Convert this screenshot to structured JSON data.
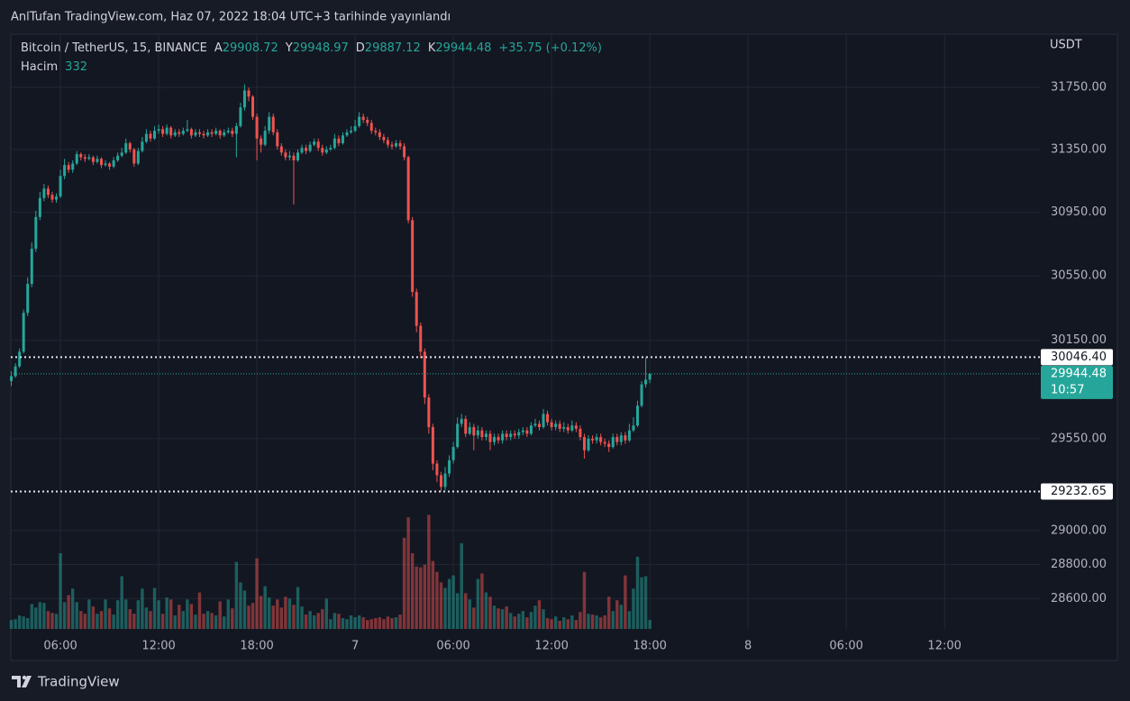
{
  "header": {
    "title": "AnlTufan TradingView.com, Haz 07, 2022 18:04 UTC+3 tarihinde yayınlandı"
  },
  "chart_data": {
    "type": "candlestick",
    "symbol": "Bitcoin / TetherUS, 15, BINANCE",
    "legend": [
      {
        "label": "A",
        "value": "29908.72"
      },
      {
        "label": "Y",
        "value": "29948.97"
      },
      {
        "label": "D",
        "value": "29887.12"
      },
      {
        "label": "K",
        "value": "29944.48"
      }
    ],
    "change": "+35.75 (+0.12%)",
    "volume_label": "Hacim",
    "volume_value": "332",
    "currency": "USDT",
    "x": [
      3,
      3.25,
      3.5,
      3.75,
      4,
      4.25,
      4.5,
      4.75,
      5,
      5.25,
      5.5,
      5.75,
      6,
      6.25,
      6.5,
      6.75,
      7,
      7.25,
      7.5,
      7.75,
      8,
      8.25,
      8.5,
      8.75,
      9,
      9.25,
      9.5,
      9.75,
      10,
      10.25,
      10.5,
      10.75,
      11,
      11.25,
      11.5,
      11.75,
      12,
      12.25,
      12.5,
      12.75,
      13,
      13.25,
      13.5,
      13.75,
      14,
      14.25,
      14.5,
      14.75,
      15,
      15.25,
      15.5,
      15.75,
      16,
      16.25,
      16.5,
      16.75,
      17,
      17.25,
      17.5,
      17.75,
      18,
      18.25,
      18.5,
      18.75,
      19,
      19.25,
      19.5,
      19.75,
      20,
      20.25,
      20.5,
      20.75,
      21,
      21.25,
      21.5,
      21.75,
      22,
      22.25,
      22.5,
      22.75,
      23,
      23.25,
      23.5,
      23.75,
      24,
      24.25,
      24.5,
      24.75,
      25,
      25.25,
      25.5,
      25.75,
      26,
      26.25,
      26.5,
      26.75,
      27,
      27.25,
      27.5,
      27.75,
      28,
      28.25,
      28.5,
      28.75,
      29,
      29.25,
      29.5,
      29.75,
      30,
      30.25,
      30.5,
      30.75,
      31,
      31.25,
      31.5,
      31.75,
      32,
      32.25,
      32.5,
      32.75,
      33,
      33.25,
      33.5,
      33.75,
      34,
      34.25,
      34.5,
      34.75,
      35,
      35.25,
      35.5,
      35.75,
      36,
      36.25,
      36.5,
      36.75,
      37,
      37.25,
      37.5,
      37.75,
      38,
      38.25,
      38.5,
      38.75,
      39,
      39.25,
      39.5,
      39.75,
      40,
      40.25,
      40.5,
      40.75,
      41,
      41.25,
      41.5,
      41.75,
      42
    ],
    "open": [
      29900,
      29930,
      29990,
      30080,
      30320,
      30500,
      30720,
      30920,
      31040,
      31100,
      31060,
      31030,
      31050,
      31180,
      31250,
      31220,
      31260,
      31320,
      31300,
      31290,
      31300,
      31270,
      31290,
      31250,
      31260,
      31240,
      31280,
      31310,
      31330,
      31390,
      31350,
      31260,
      31340,
      31400,
      31450,
      31420,
      31470,
      31480,
      31450,
      31490,
      31440,
      31460,
      31450,
      31470,
      31480,
      31440,
      31460,
      31450,
      31440,
      31460,
      31450,
      31470,
      31440,
      31460,
      31470,
      31450,
      31500,
      31620,
      31730,
      31690,
      31560,
      31420,
      31380,
      31470,
      31560,
      31460,
      31370,
      31330,
      31300,
      31310,
      31280,
      31330,
      31360,
      31340,
      31380,
      31400,
      31360,
      31330,
      31350,
      31360,
      31420,
      31390,
      31440,
      31460,
      31470,
      31500,
      31560,
      31540,
      31520,
      31470,
      31460,
      31430,
      31410,
      31380,
      31370,
      31390,
      31370,
      31300,
      30900,
      30450,
      30240,
      30080,
      29800,
      29620,
      29400,
      29330,
      29260,
      29340,
      29420,
      29500,
      29640,
      29670,
      29580,
      29620,
      29570,
      29600,
      29560,
      29580,
      29530,
      29560,
      29540,
      29580,
      29560,
      29580,
      29570,
      29590,
      29600,
      29580,
      29630,
      29640,
      29620,
      29700,
      29650,
      29620,
      29640,
      29610,
      29620,
      29600,
      29630,
      29610,
      29560,
      29480,
      29550,
      29540,
      29560,
      29530,
      29520,
      29500,
      29560,
      29530,
      29570,
      29540,
      29600,
      29630,
      29750,
      29880,
      29908.72
    ],
    "high": [
      29960,
      30010,
      30100,
      30340,
      30540,
      30760,
      30960,
      31080,
      31130,
      31120,
      31080,
      31070,
      31220,
      31290,
      31270,
      31280,
      31340,
      31330,
      31320,
      31320,
      31310,
      31310,
      31300,
      31280,
      31270,
      31300,
      31330,
      31360,
      31420,
      31400,
      31360,
      31360,
      31430,
      31480,
      31470,
      31500,
      31510,
      31500,
      31510,
      31500,
      31480,
      31480,
      31490,
      31540,
      31490,
      31480,
      31480,
      31470,
      31480,
      31480,
      31490,
      31480,
      31480,
      31490,
      31490,
      31520,
      31650,
      31770,
      31750,
      31700,
      31580,
      31440,
      31500,
      31590,
      31580,
      31480,
      31390,
      31350,
      31340,
      31330,
      31350,
      31380,
      31380,
      31400,
      31420,
      31420,
      31380,
      31370,
      31380,
      31450,
      31440,
      31460,
      31480,
      31500,
      31540,
      31590,
      31580,
      31560,
      31540,
      31490,
      31480,
      31450,
      31430,
      31400,
      31410,
      31410,
      31390,
      31310,
      30920,
      30470,
      30260,
      30100,
      29820,
      29640,
      29420,
      29350,
      29380,
      29450,
      29530,
      29680,
      29700,
      29690,
      29650,
      29640,
      29630,
      29620,
      29600,
      29600,
      29580,
      29580,
      29600,
      29600,
      29600,
      29600,
      29610,
      29620,
      29620,
      29650,
      29670,
      29660,
      29730,
      29720,
      29670,
      29660,
      29660,
      29650,
      29640,
      29660,
      29650,
      29630,
      29580,
      29570,
      29570,
      29580,
      29580,
      29550,
      29540,
      29580,
      29580,
      29590,
      29590,
      29640,
      29680,
      29780,
      29900,
      30046.4,
      29948.97
    ],
    "low": [
      29870,
      29920,
      29980,
      30070,
      30300,
      30480,
      30700,
      30900,
      31020,
      31040,
      31010,
      31010,
      31040,
      31160,
      31200,
      31200,
      31250,
      31280,
      31270,
      31280,
      31250,
      31260,
      31230,
      31240,
      31220,
      31230,
      31270,
      31300,
      31320,
      31330,
      31240,
      31250,
      31330,
      31390,
      31400,
      31410,
      31450,
      31430,
      31440,
      31420,
      31430,
      31430,
      31440,
      31460,
      31420,
      31430,
      31430,
      31420,
      31430,
      31430,
      31440,
      31420,
      31430,
      31450,
      31430,
      31300,
      31490,
      31600,
      31660,
      31540,
      31280,
      31330,
      31370,
      31450,
      31440,
      31350,
      31310,
      31280,
      31280,
      31000,
      31270,
      31320,
      31320,
      31330,
      31370,
      31340,
      31310,
      31320,
      31340,
      31350,
      31370,
      31380,
      31430,
      31450,
      31460,
      31490,
      31520,
      31500,
      31450,
      31440,
      31410,
      31390,
      31360,
      31350,
      31360,
      31350,
      31280,
      30880,
      30420,
      30200,
      30040,
      29760,
      29580,
      29360,
      29290,
      29232.65,
      29240,
      29320,
      29400,
      29490,
      29620,
      29560,
      29570,
      29480,
      29550,
      29540,
      29540,
      29480,
      29510,
      29520,
      29520,
      29540,
      29540,
      29550,
      29550,
      29570,
      29560,
      29570,
      29620,
      29600,
      29610,
      29630,
      29600,
      29600,
      29590,
      29590,
      29580,
      29590,
      29590,
      29540,
      29430,
      29470,
      29520,
      29520,
      29510,
      29500,
      29470,
      29490,
      29510,
      29510,
      29520,
      29530,
      29590,
      29620,
      29740,
      29860,
      29887.12
    ],
    "close": [
      29930,
      29990,
      30080,
      30320,
      30500,
      30720,
      30920,
      31040,
      31100,
      31060,
      31030,
      31050,
      31180,
      31250,
      31220,
      31260,
      31320,
      31300,
      31290,
      31300,
      31270,
      31290,
      31250,
      31260,
      31240,
      31280,
      31310,
      31330,
      31390,
      31350,
      31260,
      31340,
      31400,
      31450,
      31420,
      31470,
      31480,
      31450,
      31490,
      31440,
      31460,
      31450,
      31470,
      31480,
      31440,
      31460,
      31450,
      31440,
      31460,
      31450,
      31470,
      31440,
      31460,
      31470,
      31450,
      31500,
      31620,
      31730,
      31690,
      31560,
      31420,
      31380,
      31470,
      31560,
      31460,
      31370,
      31330,
      31300,
      31310,
      31280,
      31330,
      31360,
      31340,
      31380,
      31400,
      31360,
      31330,
      31350,
      31360,
      31420,
      31390,
      31440,
      31460,
      31470,
      31500,
      31560,
      31540,
      31520,
      31470,
      31460,
      31430,
      31410,
      31380,
      31370,
      31390,
      31370,
      31300,
      30900,
      30450,
      30240,
      30080,
      29800,
      29620,
      29400,
      29330,
      29260,
      29340,
      29420,
      29500,
      29640,
      29670,
      29580,
      29620,
      29570,
      29600,
      29560,
      29580,
      29530,
      29560,
      29540,
      29580,
      29560,
      29580,
      29570,
      29590,
      29600,
      29580,
      29630,
      29640,
      29620,
      29700,
      29650,
      29620,
      29640,
      29610,
      29620,
      29600,
      29630,
      29610,
      29560,
      29480,
      29550,
      29540,
      29560,
      29530,
      29520,
      29500,
      29560,
      29530,
      29570,
      29540,
      29600,
      29630,
      29750,
      29880,
      29908.73,
      29944.48
    ],
    "volume": [
      330,
      360,
      500,
      460,
      400,
      920,
      790,
      990,
      960,
      660,
      590,
      560,
      2800,
      990,
      1250,
      1490,
      990,
      660,
      560,
      1090,
      830,
      560,
      660,
      1090,
      760,
      530,
      1060,
      1950,
      1090,
      730,
      560,
      1060,
      1490,
      790,
      660,
      1520,
      1060,
      560,
      1160,
      1090,
      500,
      890,
      660,
      1090,
      920,
      530,
      1350,
      560,
      660,
      590,
      500,
      1020,
      460,
      1090,
      760,
      2480,
      1720,
      1420,
      860,
      960,
      2610,
      1220,
      1580,
      1160,
      860,
      1090,
      790,
      1190,
      1120,
      890,
      1550,
      830,
      530,
      660,
      500,
      590,
      730,
      1120,
      360,
      590,
      560,
      400,
      360,
      500,
      430,
      500,
      430,
      330,
      360,
      400,
      430,
      360,
      460,
      400,
      430,
      530,
      3370,
      4130,
      2800,
      2310,
      2280,
      2380,
      4220,
      2510,
      2110,
      1720,
      1520,
      1850,
      1980,
      1320,
      3170,
      1320,
      1090,
      790,
      1850,
      2050,
      1350,
      1190,
      860,
      760,
      730,
      830,
      590,
      460,
      560,
      660,
      430,
      630,
      860,
      1060,
      730,
      400,
      360,
      460,
      300,
      430,
      360,
      500,
      330,
      630,
      2110,
      560,
      530,
      500,
      430,
      500,
      1190,
      660,
      1060,
      890,
      1980,
      660,
      1490,
      2670,
      1910,
      1950,
      332
    ],
    "up_color": "#26a69a",
    "down_color": "#ef5350",
    "log_scale": true,
    "grid": true,
    "xlim": [
      2.97,
      65.88
    ],
    "xticks": [
      {
        "value": 6,
        "label": "06:00"
      },
      {
        "value": 12,
        "label": "12:00"
      },
      {
        "value": 18,
        "label": "18:00"
      },
      {
        "value": 24,
        "label": "7"
      },
      {
        "value": 30,
        "label": "06:00"
      },
      {
        "value": 36,
        "label": "12:00"
      },
      {
        "value": 42,
        "label": "18:00"
      },
      {
        "value": 48,
        "label": "8"
      },
      {
        "value": 54,
        "label": "06:00"
      },
      {
        "value": 60,
        "label": "12:00"
      }
    ],
    "ylim": [
      28423,
      32097
    ],
    "yticks": [
      {
        "value": 31750,
        "label": "31750.00"
      },
      {
        "value": 31350,
        "label": "31350.00"
      },
      {
        "value": 30950,
        "label": "30950.00"
      },
      {
        "value": 30550,
        "label": "30550.00"
      },
      {
        "value": 30150,
        "label": "30150.00"
      },
      {
        "value": 29550,
        "label": "29550.00"
      },
      {
        "value": 29000,
        "label": "29000.00"
      },
      {
        "value": 28800,
        "label": "28800.00"
      },
      {
        "value": 28600,
        "label": "28600.00"
      }
    ],
    "y2lim": [
      0,
      22000
    ],
    "levels": [
      {
        "value": 30046.4,
        "label": "30046.40"
      },
      {
        "value": 29232.65,
        "label": "29232.65"
      }
    ],
    "last_price": {
      "value": 29944.48,
      "label": "29944.48",
      "countdown": "10:57"
    }
  },
  "footer": {
    "brand": "TradingView"
  }
}
